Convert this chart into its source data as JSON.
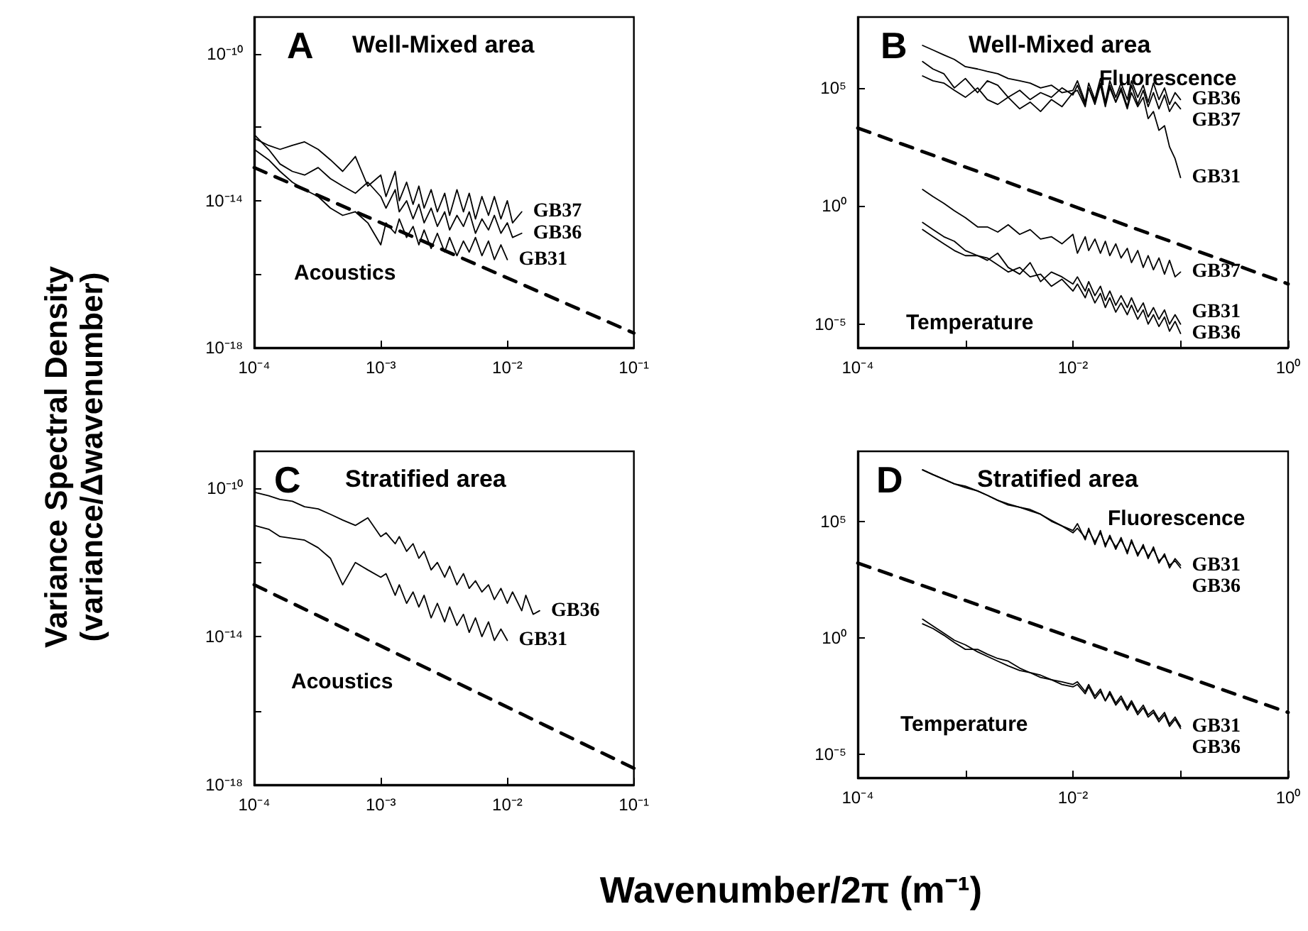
{
  "chart_data": [
    {
      "type": "line",
      "title": "A",
      "subtitle": "Well-Mixed area",
      "ylabel": "Variance Spectral Density\n(variance/Δwavenumber)",
      "log": "xy",
      "marker": "none",
      "xlim": [
        0.0001,
        0.1
      ],
      "xticks": [
        {
          "value": 0.0001,
          "label": "10⁻⁴"
        },
        {
          "value": 0.001,
          "label": "10⁻³"
        },
        {
          "value": 0.01,
          "label": "10⁻²"
        },
        {
          "value": 0.1,
          "label": "10⁻¹"
        }
      ],
      "ylim": [
        1e-18,
        1e-09
      ],
      "yticks": [
        {
          "value": 1e-18,
          "label": "10⁻¹⁸"
        },
        {
          "value": 1e-16,
          "label": null
        },
        {
          "value": 1e-14,
          "label": "10⁻¹⁴"
        },
        {
          "value": 1e-12,
          "label": null
        },
        {
          "value": 1e-10,
          "label": "10⁻¹⁰"
        }
      ],
      "annotations": [
        "Acoustics"
      ],
      "x": [
        0.0001,
        0.00013,
        0.00016,
        0.0002,
        0.00025,
        0.00032,
        0.0004,
        0.0005,
        0.00063,
        0.00079,
        0.001,
        0.0011,
        0.0013,
        0.0014,
        0.0016,
        0.0018,
        0.002,
        0.0022,
        0.0025,
        0.0028,
        0.0032,
        0.0035,
        0.004,
        0.0045,
        0.005,
        0.0056,
        0.0063,
        0.0071,
        0.0079,
        0.0089,
        0.01,
        0.011,
        0.013
      ],
      "series": [
        {
          "name": "GB37",
          "color": "#000000",
          "values": [
            5e-13,
            3.2e-13,
            2.5e-13,
            3.2e-13,
            4e-13,
            2.5e-13,
            1.3e-13,
            6.3e-14,
            1.6e-13,
            2.5e-14,
            5e-14,
            1.3e-14,
            6.3e-14,
            1e-14,
            3.2e-14,
            8e-15,
            2.5e-14,
            6.3e-15,
            2e-14,
            5e-15,
            1.6e-14,
            4e-15,
            2e-14,
            5e-15,
            1.6e-14,
            3.2e-15,
            1.3e-14,
            4e-15,
            1.3e-14,
            3.2e-15,
            1e-14,
            2.5e-15,
            5e-15
          ]
        },
        {
          "name": "GB36",
          "color": "#000000",
          "values": [
            6.3e-13,
            2.5e-13,
            1e-13,
            6.3e-14,
            5e-14,
            8e-14,
            4e-14,
            2.5e-14,
            1.6e-14,
            3.2e-14,
            1.3e-14,
            6.3e-15,
            2e-14,
            5e-15,
            1e-14,
            3.2e-15,
            8e-15,
            2.5e-15,
            6.3e-15,
            2e-15,
            5e-15,
            1.6e-15,
            4e-15,
            2e-15,
            5e-15,
            1.3e-15,
            3.2e-15,
            1.6e-15,
            4e-15,
            1.3e-15,
            2.5e-15,
            1e-15,
            1.3e-15
          ]
        },
        {
          "name": "GB31",
          "color": "#000000",
          "x": [
            0.0001,
            0.00013,
            0.00016,
            0.0002,
            0.00025,
            0.00032,
            0.0004,
            0.0005,
            0.00063,
            0.00079,
            0.001,
            0.0011,
            0.0013,
            0.0014,
            0.0016,
            0.0018,
            0.002,
            0.0022,
            0.0025,
            0.0028,
            0.0032,
            0.0035,
            0.004,
            0.0045,
            0.005,
            0.0056,
            0.0063,
            0.0071,
            0.0079,
            0.0089,
            0.01
          ],
          "values": [
            2.5e-13,
            1.3e-13,
            6.3e-14,
            3.2e-14,
            2e-14,
            1.3e-14,
            6.3e-15,
            4e-15,
            5e-15,
            2.5e-15,
            6.3e-16,
            2.5e-15,
            1.3e-15,
            3.2e-15,
            1e-15,
            2e-15,
            6.3e-16,
            1.6e-15,
            5e-16,
            1.3e-15,
            4e-16,
            1e-15,
            3.2e-16,
            8e-16,
            4e-16,
            1e-15,
            3.2e-16,
            8e-16,
            2.5e-16,
            6.3e-16,
            2.5e-16
          ]
        },
        {
          "color": "#000000",
          "line_style": "dashed",
          "x": [
            0.0001,
            0.1
          ],
          "values": [
            8e-14,
            2.5e-18
          ]
        }
      ]
    },
    {
      "type": "line",
      "title": "B",
      "subtitle": "Well-Mixed area",
      "log": "xy",
      "marker": "none",
      "xlim": [
        0.0001,
        1
      ],
      "xticks": [
        {
          "value": 0.0001,
          "label": "10⁻⁴"
        },
        {
          "value": 0.001,
          "label": null
        },
        {
          "value": 0.01,
          "label": "10⁻²"
        },
        {
          "value": 0.1,
          "label": null
        },
        {
          "value": 1,
          "label": "10⁰"
        }
      ],
      "ylim": [
        1e-06,
        100000000.0
      ],
      "yticks": [
        {
          "value": 1e-05,
          "label": "10⁻⁵"
        },
        {
          "value": 1,
          "label": "10⁰"
        },
        {
          "value": 100000.0,
          "label": "10⁵"
        }
      ],
      "annotations": [
        "Fluorescence",
        "Temperature"
      ],
      "x": [
        0.0004,
        0.0005,
        0.00063,
        0.00079,
        0.001,
        0.0013,
        0.0016,
        0.002,
        0.0025,
        0.0032,
        0.004,
        0.005,
        0.0063,
        0.0079,
        0.01,
        0.011,
        0.013,
        0.014,
        0.016,
        0.018,
        0.02,
        0.022,
        0.025,
        0.028,
        0.032,
        0.035,
        0.04,
        0.045,
        0.05,
        0.056,
        0.063,
        0.071,
        0.079,
        0.089,
        0.1
      ],
      "series": [
        {
          "name": "GB36",
          "color": "#000000",
          "values": [
            6300000.0,
            4000000.0,
            2500000.0,
            1600000.0,
            790000.0,
            630000.0,
            500000.0,
            400000.0,
            250000.0,
            200000.0,
            160000.0,
            100000.0,
            130000.0,
            63000.0,
            79000.0,
            200000.0,
            25000.0,
            160000.0,
            32000.0,
            250000.0,
            25000.0,
            200000.0,
            40000.0,
            160000.0,
            32000.0,
            200000.0,
            40000.0,
            130000.0,
            25000.0,
            160000.0,
            32000.0,
            100000.0,
            20000.0,
            63000.0,
            32000.0
          ]
        },
        {
          "name": "GB37",
          "color": "#000000",
          "values": [
            1300000.0,
            630000.0,
            400000.0,
            100000.0,
            250000.0,
            63000.0,
            200000.0,
            130000.0,
            40000.0,
            79000.0,
            32000.0,
            63000.0,
            40000.0,
            100000.0,
            50000.0,
            130000.0,
            20000.0,
            100000.0,
            25000.0,
            160000.0,
            20000.0,
            130000.0,
            25000.0,
            100000.0,
            16000.0,
            130000.0,
            20000.0,
            79000.0,
            16000.0,
            63000.0,
            13000.0,
            50000.0,
            10000.0,
            25000.0,
            13000.0
          ]
        },
        {
          "name": "GB31",
          "color": "#000000",
          "values": [
            320000.0,
            200000.0,
            160000.0,
            79000.0,
            40000.0,
            100000.0,
            32000.0,
            20000.0,
            40000.0,
            13000.0,
            25000.0,
            10000.0,
            32000.0,
            16000.0,
            63000.0,
            79000.0,
            16000.0,
            100000.0,
            20000.0,
            130000.0,
            16000.0,
            100000.0,
            25000.0,
            79000.0,
            13000.0,
            63000.0,
            16000.0,
            40000.0,
            5000.0,
            10000.0,
            1600.0,
            2500.0,
            320,
            100,
            16
          ]
        },
        {
          "name": "GB37",
          "color": "#000000",
          "values": [
            5,
            2.5,
            1.3,
            0.63,
            0.32,
            0.13,
            0.13,
            0.079,
            0.16,
            0.063,
            0.1,
            0.04,
            0.05,
            0.025,
            0.063,
            0.01,
            0.05,
            0.013,
            0.04,
            0.01,
            0.032,
            0.0079,
            0.025,
            0.0063,
            0.016,
            0.004,
            0.013,
            0.0025,
            0.0079,
            0.002,
            0.0063,
            0.0013,
            0.005,
            0.001,
            0.0016
          ]
        },
        {
          "name": "GB31",
          "color": "#000000",
          "values": [
            0.2,
            0.1,
            0.05,
            0.032,
            0.013,
            0.0079,
            0.005,
            0.01,
            0.0025,
            0.0013,
            0.004,
            0.00063,
            0.0016,
            0.001,
            0.0005,
            0.001,
            0.00025,
            0.00063,
            0.00016,
            0.0004,
            0.0001,
            0.00025,
            6.3e-05,
            0.00016,
            5e-05,
            0.00013,
            3.2e-05,
            7.9e-05,
            2e-05,
            5e-05,
            1.6e-05,
            4e-05,
            1e-05,
            2.5e-05,
            1e-05
          ]
        },
        {
          "name": "GB36",
          "color": "#000000",
          "values": [
            0.1,
            0.05,
            0.025,
            0.013,
            0.0079,
            0.0079,
            0.0063,
            0.0032,
            0.0016,
            0.0025,
            0.001,
            0.0013,
            0.0004,
            0.00079,
            0.00025,
            0.0005,
            0.00013,
            0.00032,
            7.9e-05,
            0.0002,
            5e-05,
            0.00013,
            3.2e-05,
            7.9e-05,
            2.5e-05,
            6.3e-05,
            1.6e-05,
            4e-05,
            1e-05,
            2.5e-05,
            7.9e-06,
            2e-05,
            5e-06,
            1.3e-05,
            4e-06
          ]
        },
        {
          "color": "#000000",
          "line_style": "dashed",
          "x": [
            0.0001,
            1
          ],
          "values": [
            2000.0,
            0.0005
          ]
        }
      ]
    },
    {
      "type": "line",
      "title": "C",
      "subtitle": "Stratified area",
      "xlabel": "Wavenumber/2π (m⁻¹)",
      "log": "xy",
      "marker": "none",
      "xlim": [
        0.0001,
        0.1
      ],
      "xticks": [
        {
          "value": 0.0001,
          "label": "10⁻⁴"
        },
        {
          "value": 0.001,
          "label": "10⁻³"
        },
        {
          "value": 0.01,
          "label": "10⁻²"
        },
        {
          "value": 0.1,
          "label": "10⁻¹"
        }
      ],
      "ylim": [
        1e-18,
        1e-09
      ],
      "yticks": [
        {
          "value": 1e-18,
          "label": "10⁻¹⁸"
        },
        {
          "value": 1e-16,
          "label": null
        },
        {
          "value": 1e-14,
          "label": "10⁻¹⁴"
        },
        {
          "value": 1e-12,
          "label": null
        },
        {
          "value": 1e-10,
          "label": "10⁻¹⁰"
        }
      ],
      "annotations": [
        "Acoustics"
      ],
      "x": [
        0.0001,
        0.00013,
        0.00016,
        0.0002,
        0.00025,
        0.00032,
        0.0004,
        0.0005,
        0.00063,
        0.00079,
        0.001,
        0.0011,
        0.0013,
        0.0014,
        0.0016,
        0.0018,
        0.002,
        0.0022,
        0.0025,
        0.0028,
        0.0032,
        0.0035,
        0.004,
        0.0045,
        0.005,
        0.0056,
        0.0063,
        0.0071,
        0.0079,
        0.0089,
        0.01,
        0.011,
        0.013,
        0.014,
        0.016,
        0.018
      ],
      "series": [
        {
          "name": "GB36",
          "color": "#000000",
          "values": [
            7.9e-11,
            6.3e-11,
            5e-11,
            4.5e-11,
            3.2e-11,
            2.8e-11,
            2e-11,
            1.4e-11,
            1e-11,
            1.6e-11,
            5e-12,
            6.3e-12,
            3.2e-12,
            5e-12,
            2e-12,
            3.2e-12,
            1.3e-12,
            2e-12,
            6.3e-13,
            1e-12,
            4e-13,
            7.9e-13,
            2.5e-13,
            5e-13,
            2e-13,
            3.2e-13,
            1.6e-13,
            2.5e-13,
            1e-13,
            2e-13,
            7.9e-14,
            1.6e-13,
            5e-14,
            1.3e-13,
            4e-14,
            5e-14
          ]
        },
        {
          "name": "GB31",
          "color": "#000000",
          "x": [
            0.0001,
            0.00013,
            0.00016,
            0.0002,
            0.00025,
            0.00032,
            0.0004,
            0.0005,
            0.00063,
            0.00079,
            0.001,
            0.0011,
            0.0013,
            0.0014,
            0.0016,
            0.0018,
            0.002,
            0.0022,
            0.0025,
            0.0028,
            0.0032,
            0.0035,
            0.004,
            0.0045,
            0.005,
            0.0056,
            0.0063,
            0.0071,
            0.0079,
            0.0089,
            0.01
          ],
          "values": [
            1e-11,
            7.9e-12,
            5e-12,
            4.5e-12,
            4e-12,
            2.5e-12,
            1.3e-12,
            2.5e-13,
            1e-12,
            6.3e-13,
            4e-13,
            5e-13,
            1.3e-13,
            2.5e-13,
            7.9e-14,
            1.6e-13,
            6.3e-14,
            1.3e-13,
            3.2e-14,
            7.9e-14,
            2.5e-14,
            6.3e-14,
            2e-14,
            4e-14,
            1.3e-14,
            3.2e-14,
            1e-14,
            2.5e-14,
            7.9e-15,
            1.6e-14,
            7.9e-15
          ]
        },
        {
          "color": "#000000",
          "line_style": "dashed",
          "x": [
            0.0001,
            0.1
          ],
          "values": [
            2.5e-13,
            2.8e-18
          ]
        }
      ]
    },
    {
      "type": "line",
      "title": "D",
      "subtitle": "Stratified area",
      "log": "xy",
      "marker": "none",
      "xlim": [
        0.0001,
        1
      ],
      "xticks": [
        {
          "value": 0.0001,
          "label": "10⁻⁴"
        },
        {
          "value": 0.001,
          "label": null
        },
        {
          "value": 0.01,
          "label": "10⁻²"
        },
        {
          "value": 0.1,
          "label": null
        },
        {
          "value": 1,
          "label": "10⁰"
        }
      ],
      "ylim": [
        1e-06,
        100000000.0
      ],
      "yticks": [
        {
          "value": 1e-05,
          "label": "10⁻⁵"
        },
        {
          "value": 1,
          "label": "10⁰"
        },
        {
          "value": 100000.0,
          "label": "10⁵"
        }
      ],
      "annotations": [
        "Fluorescence",
        "Temperature"
      ],
      "x": [
        0.0004,
        0.0005,
        0.00063,
        0.00079,
        0.001,
        0.0013,
        0.0016,
        0.002,
        0.0025,
        0.0032,
        0.004,
        0.005,
        0.0063,
        0.0079,
        0.01,
        0.011,
        0.013,
        0.014,
        0.016,
        0.018,
        0.02,
        0.022,
        0.025,
        0.028,
        0.032,
        0.035,
        0.04,
        0.045,
        0.05,
        0.056,
        0.063,
        0.071,
        0.079,
        0.089,
        0.1
      ],
      "series": [
        {
          "name": "GB31",
          "color": "#000000",
          "values": [
            16000000.0,
            10000000.0,
            6300000.0,
            4000000.0,
            3200000.0,
            2000000.0,
            1300000.0,
            790000.0,
            500000.0,
            400000.0,
            320000.0,
            200000.0,
            100000.0,
            63000.0,
            40000.0,
            79000.0,
            16000.0,
            50000.0,
            10000.0,
            40000.0,
            7900.0,
            25000.0,
            6300.0,
            20000.0,
            4000.0,
            16000.0,
            3200.0,
            10000.0,
            2500.0,
            7900.0,
            1600.0,
            4000.0,
            1000.0,
            2500.0,
            1300.0
          ]
        },
        {
          "name": "GB36",
          "color": "#000000",
          "values": [
            16000000.0,
            10000000.0,
            6300000.0,
            4000000.0,
            2800000.0,
            2000000.0,
            1300000.0,
            790000.0,
            560000.0,
            400000.0,
            280000.0,
            200000.0,
            110000.0,
            63000.0,
            32000.0,
            50000.0,
            20000.0,
            40000.0,
            13000.0,
            32000.0,
            10000.0,
            20000.0,
            7900.0,
            16000.0,
            5000.0,
            13000.0,
            4000.0,
            7900.0,
            3200.0,
            6300.0,
            2000.0,
            3200.0,
            1300.0,
            2000.0,
            1000.0
          ]
        },
        {
          "name": "GB31",
          "color": "#000000",
          "values": [
            6.3,
            3.2,
            1.6,
            0.79,
            0.5,
            0.25,
            0.16,
            0.1,
            0.063,
            0.04,
            0.032,
            0.02,
            0.016,
            0.013,
            0.01,
            0.013,
            0.005,
            0.01,
            0.0032,
            0.0063,
            0.002,
            0.005,
            0.0016,
            0.0032,
            0.001,
            0.002,
            0.00063,
            0.0013,
            0.0005,
            0.00079,
            0.00032,
            0.00063,
            0.0002,
            0.0004,
            0.00016
          ]
        },
        {
          "name": "GB36",
          "color": "#000000",
          "values": [
            4,
            2.5,
            1.3,
            0.63,
            0.32,
            0.32,
            0.2,
            0.13,
            0.1,
            0.05,
            0.032,
            0.025,
            0.016,
            0.01,
            0.0079,
            0.01,
            0.004,
            0.0079,
            0.0025,
            0.005,
            0.002,
            0.004,
            0.0013,
            0.0025,
            0.00079,
            0.0016,
            0.0005,
            0.001,
            0.0004,
            0.00063,
            0.00025,
            0.0005,
            0.00016,
            0.00032,
            0.00013
          ]
        },
        {
          "color": "#000000",
          "line_style": "dashed",
          "x": [
            0.0001,
            1
          ],
          "values": [
            1600.0,
            0.00063
          ]
        }
      ]
    }
  ]
}
